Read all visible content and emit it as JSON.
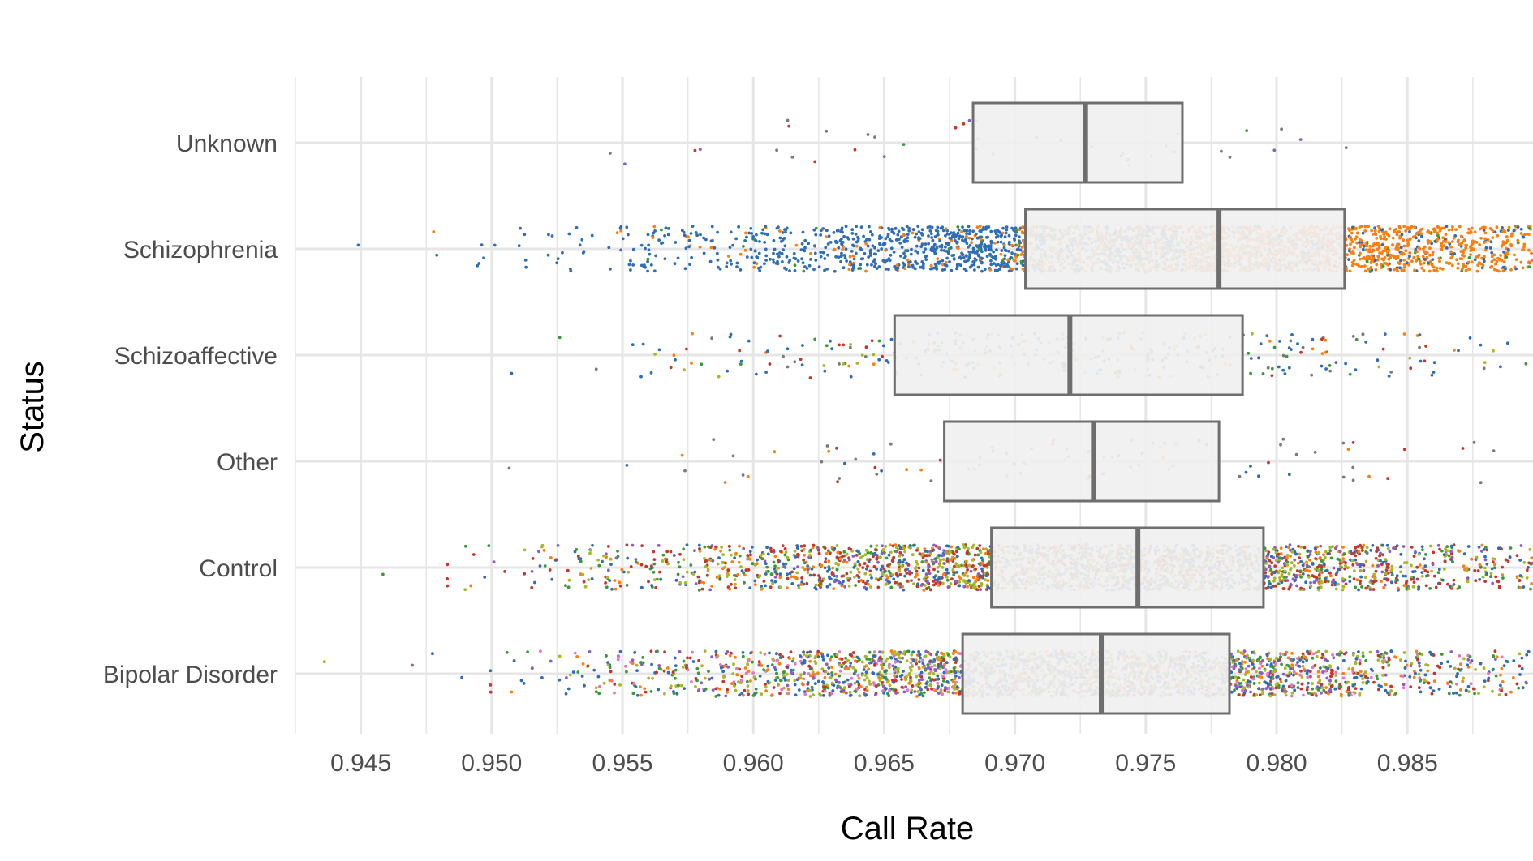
{
  "chart_data": {
    "type": "boxplot",
    "title": "",
    "xlabel": "Call Rate",
    "ylabel": "Status",
    "xlim": [
      0.9425,
      0.9898
    ],
    "x_ticks": [
      0.945,
      0.95,
      0.955,
      0.96,
      0.965,
      0.97,
      0.975,
      0.98,
      0.985
    ],
    "x_tick_labels": [
      "0.945",
      "0.950",
      "0.955",
      "0.960",
      "0.965",
      "0.970",
      "0.975",
      "0.980",
      "0.985"
    ],
    "grid": true,
    "legend": "none",
    "orientation": "horizontal",
    "categories": [
      "Unknown",
      "Schizophrenia",
      "Schizoaffective",
      "Other",
      "Control",
      "Bipolar Disorder"
    ],
    "boxes": [
      {
        "category": "Unknown",
        "q1": 0.9684,
        "median": 0.9727,
        "q3": 0.9764
      },
      {
        "category": "Schizophrenia",
        "q1": 0.9704,
        "median": 0.9778,
        "q3": 0.9826
      },
      {
        "category": "Schizoaffective",
        "q1": 0.9654,
        "median": 0.9721,
        "q3": 0.9787
      },
      {
        "category": "Other",
        "q1": 0.9673,
        "median": 0.973,
        "q3": 0.9778
      },
      {
        "category": "Control",
        "q1": 0.9691,
        "median": 0.9747,
        "q3": 0.9795
      },
      {
        "category": "Bipolar Disorder",
        "q1": 0.968,
        "median": 0.9733,
        "q3": 0.9782
      }
    ],
    "jitter_points": [
      {
        "category": "Unknown",
        "approx_count": 40
      },
      {
        "category": "Schizophrenia",
        "approx_count": 3500
      },
      {
        "category": "Schizoaffective",
        "approx_count": 320
      },
      {
        "category": "Other",
        "approx_count": 90
      },
      {
        "category": "Control",
        "approx_count": 9000
      },
      {
        "category": "Bipolar Disorder",
        "approx_count": 8000
      }
    ],
    "colors": {
      "box_fill": "#f0f0f0",
      "box_stroke": "#6e6e6e",
      "grid": "#e6e6e6",
      "points": [
        "#2f6eb5",
        "#ff7f0e",
        "#3a9a3a",
        "#c8352d",
        "#a8b826",
        "#8a5ec4",
        "#7a7a7a",
        "#e377c2",
        "#8c564b"
      ]
    }
  }
}
